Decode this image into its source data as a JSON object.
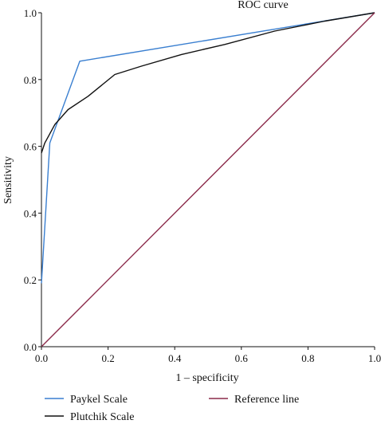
{
  "chart_data": {
    "type": "line",
    "title": "ROC curve",
    "xlabel": "1 – specificity",
    "ylabel": "Sensitivity",
    "xlim": [
      0,
      1
    ],
    "ylim": [
      0,
      1
    ],
    "xticks": [
      "0.0",
      "0.2",
      "0.4",
      "0.6",
      "0.8",
      "1.0"
    ],
    "yticks": [
      "0.0",
      "0.2",
      "0.4",
      "0.6",
      "0.8",
      "1.0"
    ],
    "grid": false,
    "legend_position": "bottom",
    "series": [
      {
        "name": "Paykel Scale",
        "color": "#3a7fd0",
        "x": [
          0.0,
          0.025,
          0.115,
          1.0
        ],
        "y": [
          0.19,
          0.61,
          0.855,
          1.0
        ]
      },
      {
        "name": "Plutchik Scale",
        "color": "#111111",
        "x": [
          0.0,
          0.01,
          0.04,
          0.08,
          0.14,
          0.22,
          0.3,
          0.42,
          0.55,
          0.7,
          0.85,
          1.0
        ],
        "y": [
          0.58,
          0.61,
          0.665,
          0.71,
          0.75,
          0.815,
          0.84,
          0.875,
          0.905,
          0.945,
          0.975,
          1.0
        ]
      },
      {
        "name": "Reference line",
        "color": "#8b2a4a",
        "x": [
          0.0,
          1.0
        ],
        "y": [
          0.0,
          1.0
        ]
      }
    ]
  }
}
